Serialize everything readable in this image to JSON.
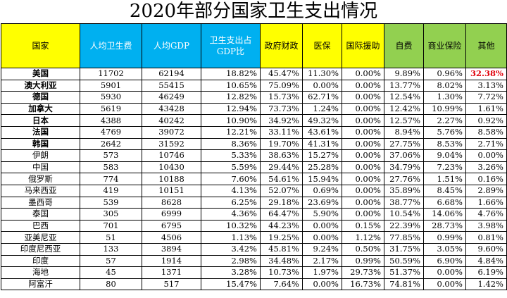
{
  "title": "2020年部分国家卫生支出情况",
  "colors": {
    "yellow": "#ffff00",
    "blue": "#00b0f0",
    "green": "#92d050",
    "highlight": "#e0000a"
  },
  "columns": [
    "国家",
    "人均卫生费",
    "人均GDP",
    "卫生支出占GDP比",
    "政府财政",
    "医保",
    "国际援助",
    "自费",
    "商业保险",
    "其他"
  ],
  "rows": [
    {
      "country": "美国",
      "bold": true,
      "cells": [
        "11702",
        "62194",
        "18.82%",
        "45.47%",
        "11.30%",
        "0.00%",
        "9.89%",
        "0.96%",
        "32.38%"
      ]
    },
    {
      "country": "澳大利亚",
      "bold": true,
      "cells": [
        "5901",
        "55415",
        "10.65%",
        "75.09%",
        "0.00%",
        "0.00%",
        "13.77%",
        "8.02%",
        "3.13%"
      ]
    },
    {
      "country": "德国",
      "bold": true,
      "cells": [
        "5930",
        "46249",
        "12.82%",
        "15.73%",
        "62.71%",
        "0.00%",
        "12.54%",
        "1.30%",
        "7.72%"
      ]
    },
    {
      "country": "加拿大",
      "bold": true,
      "cells": [
        "5619",
        "43428",
        "12.94%",
        "73.73%",
        "1.24%",
        "0.00%",
        "12.42%",
        "10.99%",
        "1.61%"
      ]
    },
    {
      "country": "日本",
      "bold": true,
      "cells": [
        "4388",
        "40242",
        "10.90%",
        "34.92%",
        "49.32%",
        "0.00%",
        "12.57%",
        "2.27%",
        "0.92%"
      ]
    },
    {
      "country": "法国",
      "bold": true,
      "cells": [
        "4769",
        "39072",
        "12.21%",
        "33.11%",
        "43.61%",
        "0.00%",
        "8.94%",
        "5.76%",
        "8.58%"
      ]
    },
    {
      "country": "韩国",
      "bold": true,
      "cells": [
        "2642",
        "31592",
        "8.36%",
        "19.70%",
        "41.31%",
        "0.00%",
        "27.75%",
        "8.53%",
        "2.71%"
      ]
    },
    {
      "country": "伊朗",
      "bold": false,
      "cells": [
        "573",
        "10746",
        "5.33%",
        "38.63%",
        "15.27%",
        "0.00%",
        "37.06%",
        "9.04%",
        "0.00%"
      ]
    },
    {
      "country": "中国",
      "bold": false,
      "cells": [
        "583",
        "10430",
        "5.59%",
        "29.44%",
        "25.28%",
        "0.00%",
        "34.79%",
        "7.23%",
        "3.26%"
      ]
    },
    {
      "country": "俄罗斯",
      "bold": false,
      "cells": [
        "774",
        "10188",
        "7.60%",
        "54.61%",
        "15.94%",
        "0.00%",
        "27.76%",
        "1.51%",
        "0.16%"
      ]
    },
    {
      "country": "马来西亚",
      "bold": false,
      "cells": [
        "419",
        "10151",
        "4.13%",
        "52.07%",
        "0.69%",
        "0.00%",
        "35.89%",
        "8.45%",
        "2.89%"
      ]
    },
    {
      "country": "墨西哥",
      "bold": false,
      "cells": [
        "539",
        "8628",
        "6.25%",
        "29.18%",
        "23.69%",
        "0.00%",
        "38.77%",
        "6.68%",
        "1.66%"
      ]
    },
    {
      "country": "泰国",
      "bold": false,
      "cells": [
        "305",
        "6999",
        "4.36%",
        "64.47%",
        "5.90%",
        "0.00%",
        "10.54%",
        "14.06%",
        "4.76%"
      ]
    },
    {
      "country": "巴西",
      "bold": false,
      "cells": [
        "701",
        "6795",
        "10.32%",
        "44.23%",
        "0.00%",
        "0.15%",
        "22.39%",
        "28.73%",
        "3.98%"
      ]
    },
    {
      "country": "亚美尼亚",
      "bold": false,
      "cells": [
        "51",
        "4506",
        "1.13%",
        "19.25%",
        "0.00%",
        "1.12%",
        "77.85%",
        "0.99%",
        "0.81%"
      ]
    },
    {
      "country": "印度尼西亚",
      "bold": false,
      "cells": [
        "133",
        "3894",
        "3.42%",
        "45.81%",
        "9.24%",
        "0.50%",
        "31.75%",
        "3.05%",
        "9.60%"
      ]
    },
    {
      "country": "印度",
      "bold": false,
      "cells": [
        "57",
        "1914",
        "2.98%",
        "34.48%",
        "2.17%",
        "0.99%",
        "50.59%",
        "6.90%",
        "4.84%"
      ]
    },
    {
      "country": "海地",
      "bold": false,
      "cells": [
        "45",
        "1371",
        "3.28%",
        "10.73%",
        "1.97%",
        "29.73%",
        "51.37%",
        "0.00%",
        "6.19%"
      ]
    },
    {
      "country": "阿富汗",
      "bold": false,
      "cells": [
        "80",
        "517",
        "15.47%",
        "7.64%",
        "0.00%",
        "16.73%",
        "74.81%",
        "0.00%",
        "1.42%"
      ]
    }
  ]
}
